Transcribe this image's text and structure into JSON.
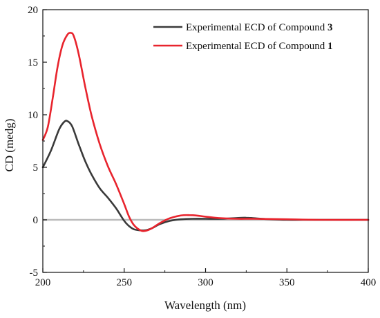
{
  "chart_data": {
    "type": "line",
    "xlabel": "Wavelength (nm)",
    "ylabel": "CD (medg)",
    "xlim": [
      200,
      400
    ],
    "ylim": [
      -5,
      20
    ],
    "xticks": [
      200,
      250,
      300,
      350,
      400
    ],
    "yticks": [
      -5,
      0,
      5,
      10,
      15,
      20
    ],
    "legend_position": "top-right",
    "zero_line": {
      "y": 0,
      "color": "#bbbbbb"
    },
    "series": [
      {
        "name_prefix": "Experimental ECD of Compound ",
        "name_bold": "3",
        "color": "#3a3a3a",
        "x": [
          200,
          205,
          210,
          213,
          215,
          218,
          222,
          226,
          230,
          235,
          240,
          245,
          250,
          253,
          256,
          260,
          263,
          267,
          272,
          278,
          285,
          292,
          300,
          310,
          320,
          325,
          330,
          340,
          350,
          360,
          380,
          400
        ],
        "y": [
          5.0,
          6.6,
          8.6,
          9.3,
          9.4,
          8.9,
          7.2,
          5.6,
          4.3,
          3.0,
          2.1,
          1.1,
          -0.1,
          -0.6,
          -0.9,
          -1.0,
          -1.0,
          -0.8,
          -0.4,
          -0.1,
          0.05,
          0.1,
          0.1,
          0.1,
          0.18,
          0.2,
          0.15,
          0.05,
          0.0,
          0.0,
          0.0,
          0.0
        ]
      },
      {
        "name_prefix": "Experimental ECD of Compound ",
        "name_bold": "1",
        "color": "#e8242d",
        "x": [
          200,
          203,
          206,
          209,
          212,
          215,
          217,
          219,
          222,
          226,
          230,
          235,
          240,
          245,
          250,
          253,
          256,
          260,
          263,
          267,
          272,
          278,
          285,
          290,
          295,
          300,
          310,
          320,
          330,
          350,
          370,
          400
        ],
        "y": [
          7.6,
          8.8,
          11.5,
          14.5,
          16.6,
          17.6,
          17.8,
          17.5,
          15.8,
          12.7,
          9.9,
          7.2,
          5.1,
          3.4,
          1.5,
          0.3,
          -0.5,
          -1.0,
          -1.05,
          -0.8,
          -0.3,
          0.15,
          0.42,
          0.45,
          0.4,
          0.3,
          0.15,
          0.1,
          0.1,
          0.05,
          0.0,
          0.0
        ]
      }
    ]
  }
}
